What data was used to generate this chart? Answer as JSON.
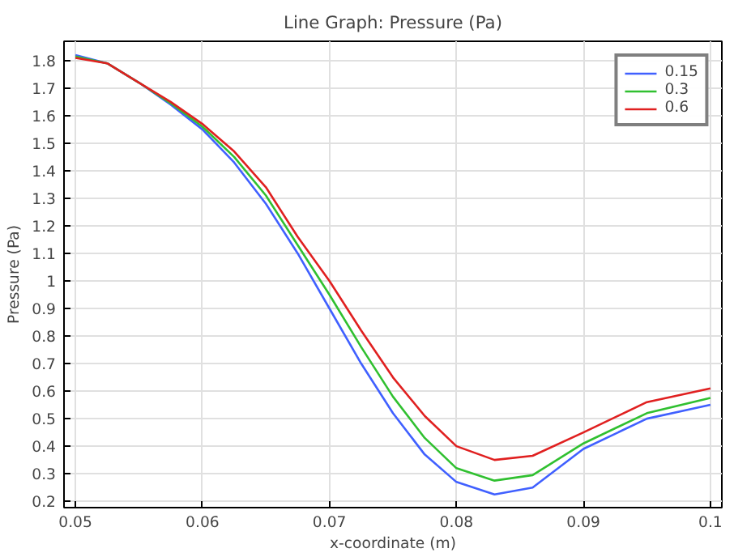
{
  "chart_data": {
    "type": "line",
    "title": "Line Graph: Pressure (Pa)",
    "xlabel": "x-coordinate (m)",
    "ylabel": "Pressure (Pa)",
    "x": [
      0.05,
      0.0525,
      0.055,
      0.0575,
      0.06,
      0.0625,
      0.065,
      0.0675,
      0.07,
      0.0725,
      0.075,
      0.0775,
      0.08,
      0.083,
      0.086,
      0.09,
      0.095,
      0.1
    ],
    "series": [
      {
        "name": "0.15",
        "color": "#4060ff",
        "values": [
          1.82,
          1.79,
          1.72,
          1.64,
          1.55,
          1.43,
          1.28,
          1.1,
          0.9,
          0.7,
          0.52,
          0.37,
          0.27,
          0.225,
          0.25,
          0.39,
          0.5,
          0.55
        ]
      },
      {
        "name": "0.3",
        "color": "#30c030",
        "values": [
          1.815,
          1.79,
          1.72,
          1.645,
          1.56,
          1.45,
          1.31,
          1.13,
          0.95,
          0.76,
          0.58,
          0.43,
          0.32,
          0.275,
          0.295,
          0.41,
          0.52,
          0.575
        ]
      },
      {
        "name": "0.6",
        "color": "#e02020",
        "values": [
          1.81,
          1.79,
          1.72,
          1.65,
          1.57,
          1.47,
          1.34,
          1.16,
          1.0,
          0.82,
          0.65,
          0.51,
          0.4,
          0.35,
          0.365,
          0.45,
          0.56,
          0.61
        ]
      }
    ],
    "xlim": [
      0.0491,
      0.1009
    ],
    "ylim": [
      0.177,
      1.87
    ],
    "xticks": [
      0.05,
      0.06,
      0.07,
      0.08,
      0.09,
      0.1
    ],
    "yticks": [
      0.2,
      0.3,
      0.4,
      0.5,
      0.6,
      0.7,
      0.8,
      0.9,
      1,
      1.1,
      1.2,
      1.3,
      1.4,
      1.5,
      1.6,
      1.7,
      1.8
    ],
    "grid": true,
    "legend": "top right",
    "line_style": "solid"
  }
}
